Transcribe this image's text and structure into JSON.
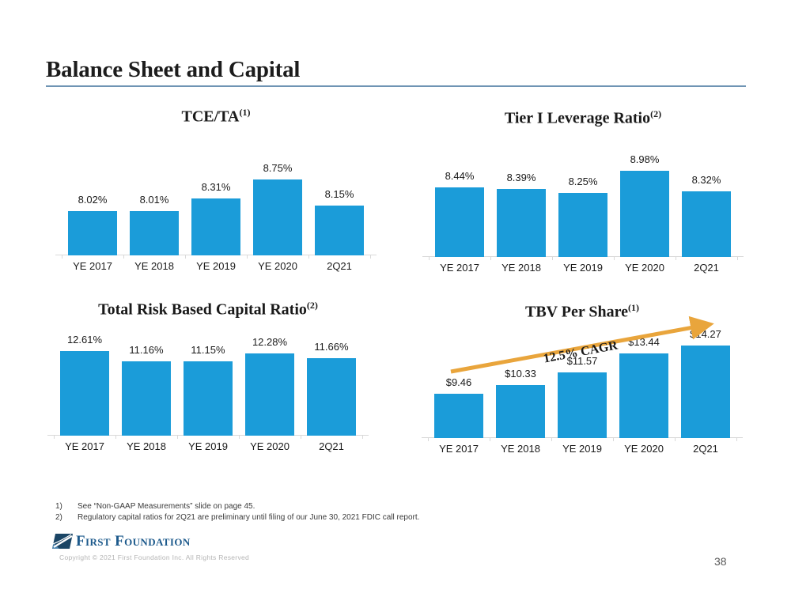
{
  "slide": {
    "title": "Balance Sheet and Capital",
    "page_number": "38"
  },
  "chart_data": [
    {
      "type": "bar",
      "title": "TCE/TA",
      "title_sup": "(1)",
      "categories": [
        "YE 2017",
        "YE 2018",
        "YE 2019",
        "YE 2020",
        "2Q21"
      ],
      "values": [
        8.02,
        8.01,
        8.31,
        8.75,
        8.15
      ],
      "value_labels": [
        "8.02%",
        "8.01%",
        "8.31%",
        "8.75%",
        "8.15%"
      ],
      "ylim": [
        7.0,
        9.0
      ],
      "grid": false,
      "legend": false,
      "bar_color": "#1B9CD9"
    },
    {
      "type": "bar",
      "title": "Tier I Leverage Ratio",
      "title_sup": "(2)",
      "categories": [
        "YE 2017",
        "YE 2018",
        "YE 2019",
        "YE 2020",
        "2Q21"
      ],
      "values": [
        8.44,
        8.39,
        8.25,
        8.98,
        8.32
      ],
      "value_labels": [
        "8.44%",
        "8.39%",
        "8.25%",
        "8.98%",
        "8.32%"
      ],
      "ylim": [
        6.2,
        9.0
      ],
      "grid": false,
      "legend": false,
      "bar_color": "#1B9CD9"
    },
    {
      "type": "bar",
      "title": "Total Risk Based Capital Ratio",
      "title_sup": "(2)",
      "categories": [
        "YE 2017",
        "YE 2018",
        "YE 2019",
        "YE 2020",
        "2Q21"
      ],
      "values": [
        12.61,
        11.16,
        11.15,
        12.28,
        11.66
      ],
      "value_labels": [
        "12.61%",
        "11.16%",
        "11.15%",
        "12.28%",
        "11.66%"
      ],
      "ylim": [
        0.5,
        13.0
      ],
      "grid": false,
      "legend": false,
      "bar_color": "#1B9CD9"
    },
    {
      "type": "bar",
      "title": "TBV Per Share",
      "title_sup": "(1)",
      "categories": [
        "YE 2017",
        "YE 2018",
        "YE 2019",
        "YE 2020",
        "2Q21"
      ],
      "values": [
        9.46,
        10.33,
        11.57,
        13.44,
        14.27
      ],
      "value_labels": [
        "$9.46",
        "$10.33",
        "$11.57",
        "$13.44",
        "$14.27"
      ],
      "ylim": [
        5.0,
        14.5
      ],
      "grid": false,
      "legend": false,
      "bar_color": "#1B9CD9",
      "annotation": {
        "text": "12.5% CAGR",
        "arrow_color": "#E9A53C"
      }
    }
  ],
  "footnotes": [
    {
      "marker": "1)",
      "text": "See “Non-GAAP Measurements” slide on page 45."
    },
    {
      "marker": "2)",
      "text": "Regulatory capital ratios for 2Q21 are preliminary until filing of our June 30, 2021 FDIC call report."
    }
  ],
  "footer": {
    "logo_text": "First Foundation",
    "copyright": "Copyright © 2021 First Foundation Inc. All Rights Reserved"
  },
  "colors": {
    "bar": "#1B9CD9",
    "arrow": "#E9A53C",
    "title_rule": "#6F94B4",
    "logo_blue": "#1D5A8C"
  }
}
